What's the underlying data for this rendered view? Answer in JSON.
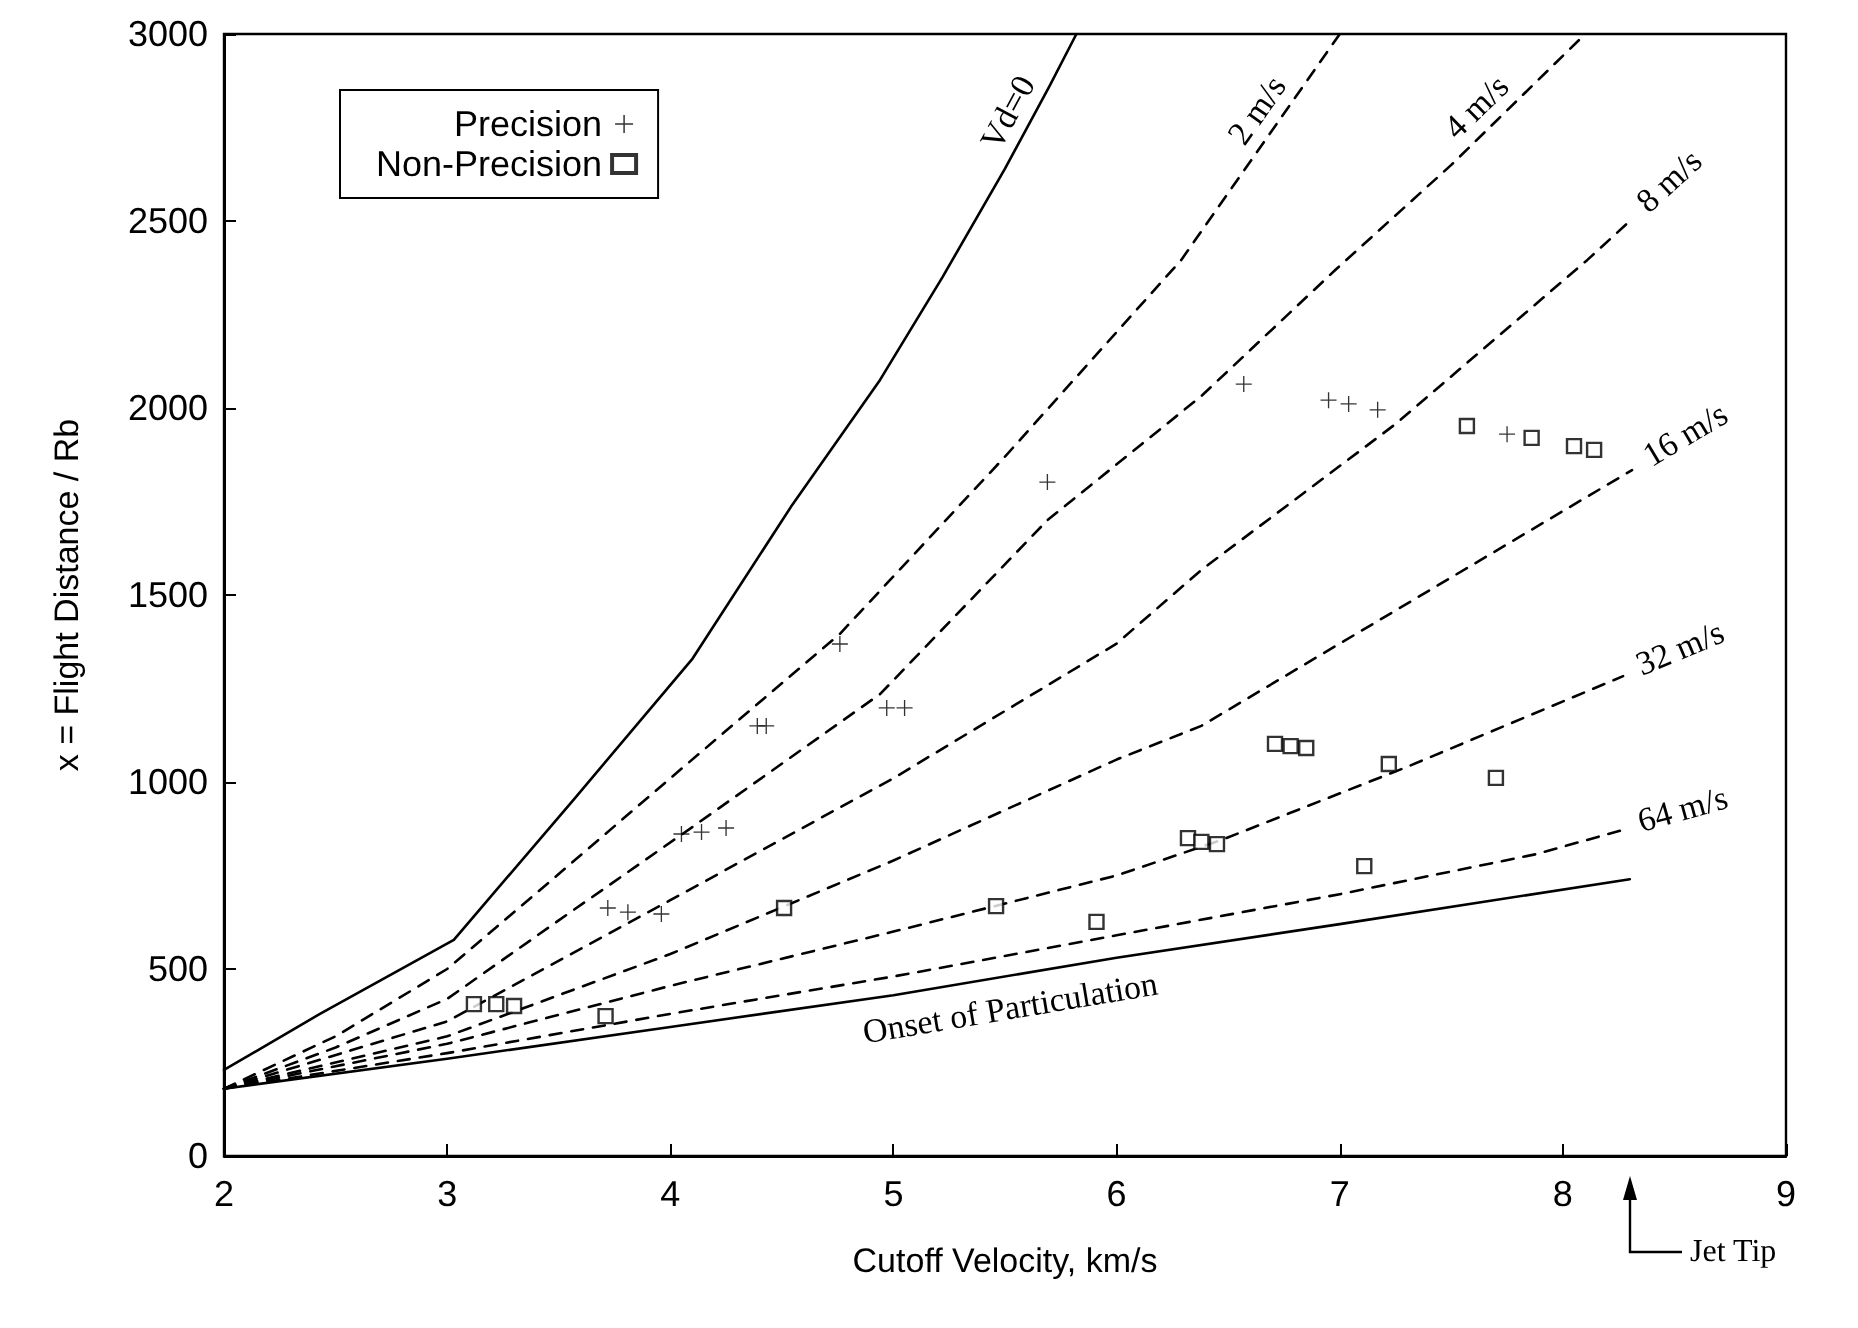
{
  "chart_data": {
    "type": "scatter",
    "xlabel": "Cutoff Velocity, km/s",
    "ylabel": "x = Flight Distance / Rb",
    "xlim": [
      2,
      9
    ],
    "ylim": [
      0,
      3000
    ],
    "xticks": [
      2,
      3,
      4,
      5,
      6,
      7,
      8,
      9
    ],
    "yticks": [
      0,
      500,
      1000,
      1500,
      2000,
      2500,
      3000
    ],
    "legend": "top left",
    "series": [
      {
        "name": "Precision",
        "marker": "cross",
        "color": "#000000",
        "x": [
          3.72,
          3.81,
          3.96,
          4.05,
          4.14,
          4.25,
          4.39,
          4.43,
          4.76,
          4.97,
          5.05,
          5.69,
          6.57,
          6.95,
          7.04,
          7.17,
          7.75
        ],
        "values": [
          663,
          652,
          647,
          861,
          866,
          877,
          1150,
          1150,
          1369,
          1198,
          1198,
          1802,
          2064,
          2021,
          2011,
          1995,
          1930
        ]
      },
      {
        "name": "Non-Precision",
        "marker": "square",
        "color": "#000000",
        "x": [
          3.12,
          3.22,
          3.3,
          3.71,
          4.51,
          5.46,
          5.91,
          6.32,
          6.38,
          6.45,
          6.71,
          6.78,
          6.85,
          7.11,
          7.22,
          7.57,
          7.7,
          7.86,
          8.05,
          8.14
        ],
        "values": [
          406,
          406,
          401,
          374,
          663,
          668,
          626,
          850,
          840,
          834,
          1102,
          1096,
          1091,
          775,
          1048,
          1952,
          1011,
          1920,
          1898,
          1888
        ]
      },
      {
        "name": "Vd=0",
        "type": "line",
        "color": "#000000",
        "line_style": "solid",
        "marker": "none",
        "x": [
          2,
          2.43,
          3.03,
          3.57,
          4.1,
          4.54,
          4.94,
          5.22,
          5.5,
          5.7,
          5.82
        ],
        "values": [
          230,
          380,
          578,
          955,
          1330,
          1735,
          2075,
          2350,
          2640,
          2861,
          3000
        ]
      },
      {
        "name": "2 m/s",
        "type": "line",
        "color": "#000000",
        "line_style": "dashed",
        "marker": "none",
        "x": [
          2,
          2.5,
          3,
          3.5,
          4,
          4.76,
          5.5,
          6.29,
          7.0
        ],
        "values": [
          180,
          320,
          500,
          754,
          1010,
          1396,
          1870,
          2396,
          3000
        ]
      },
      {
        "name": "4 m/s",
        "type": "line",
        "color": "#000000",
        "line_style": "dashed",
        "marker": "none",
        "x": [
          2,
          2.5,
          3,
          3.5,
          4.1,
          4.94,
          5.69,
          6.38,
          6.98,
          7.5,
          8.1
        ],
        "values": [
          180,
          290,
          420,
          630,
          880,
          1235,
          1700,
          2032,
          2369,
          2650,
          3000
        ]
      },
      {
        "name": "8 m/s",
        "type": "line",
        "color": "#000000",
        "line_style": "dashed",
        "marker": "none",
        "x": [
          2,
          3,
          4,
          5,
          6,
          6.38,
          7.25,
          8.11,
          8.3
        ],
        "values": [
          180,
          360,
          684,
          1010,
          1370,
          1567,
          1957,
          2396,
          2500
        ]
      },
      {
        "name": "16 m/s",
        "type": "line",
        "color": "#000000",
        "line_style": "dashed",
        "marker": "none",
        "x": [
          2,
          3,
          4,
          5,
          6,
          6.38,
          7,
          8.31
        ],
        "values": [
          180,
          320,
          540,
          790,
          1060,
          1150,
          1370,
          1834
        ]
      },
      {
        "name": "32 m/s",
        "type": "line",
        "color": "#000000",
        "line_style": "dashed",
        "marker": "none",
        "x": [
          2,
          3,
          4,
          5,
          6,
          6.47,
          7.3,
          8.27
        ],
        "values": [
          180,
          300,
          455,
          600,
          750,
          845,
          1040,
          1283
        ]
      },
      {
        "name": "64 m/s",
        "type": "line",
        "color": "#000000",
        "line_style": "dashed",
        "marker": "none",
        "x": [
          2,
          3,
          4,
          5,
          6,
          7,
          7.88,
          8.27
        ],
        "values": [
          180,
          275,
          380,
          480,
          590,
          700,
          807,
          872
        ]
      },
      {
        "name": "Onset of Particulation",
        "type": "line",
        "color": "#000000",
        "line_style": "solid",
        "marker": "none",
        "x": [
          2,
          3,
          4,
          5,
          6,
          7,
          8.3
        ],
        "values": [
          180,
          260,
          345,
          430,
          530,
          620,
          740
        ]
      }
    ],
    "annotations": [
      "Jet Tip"
    ]
  }
}
